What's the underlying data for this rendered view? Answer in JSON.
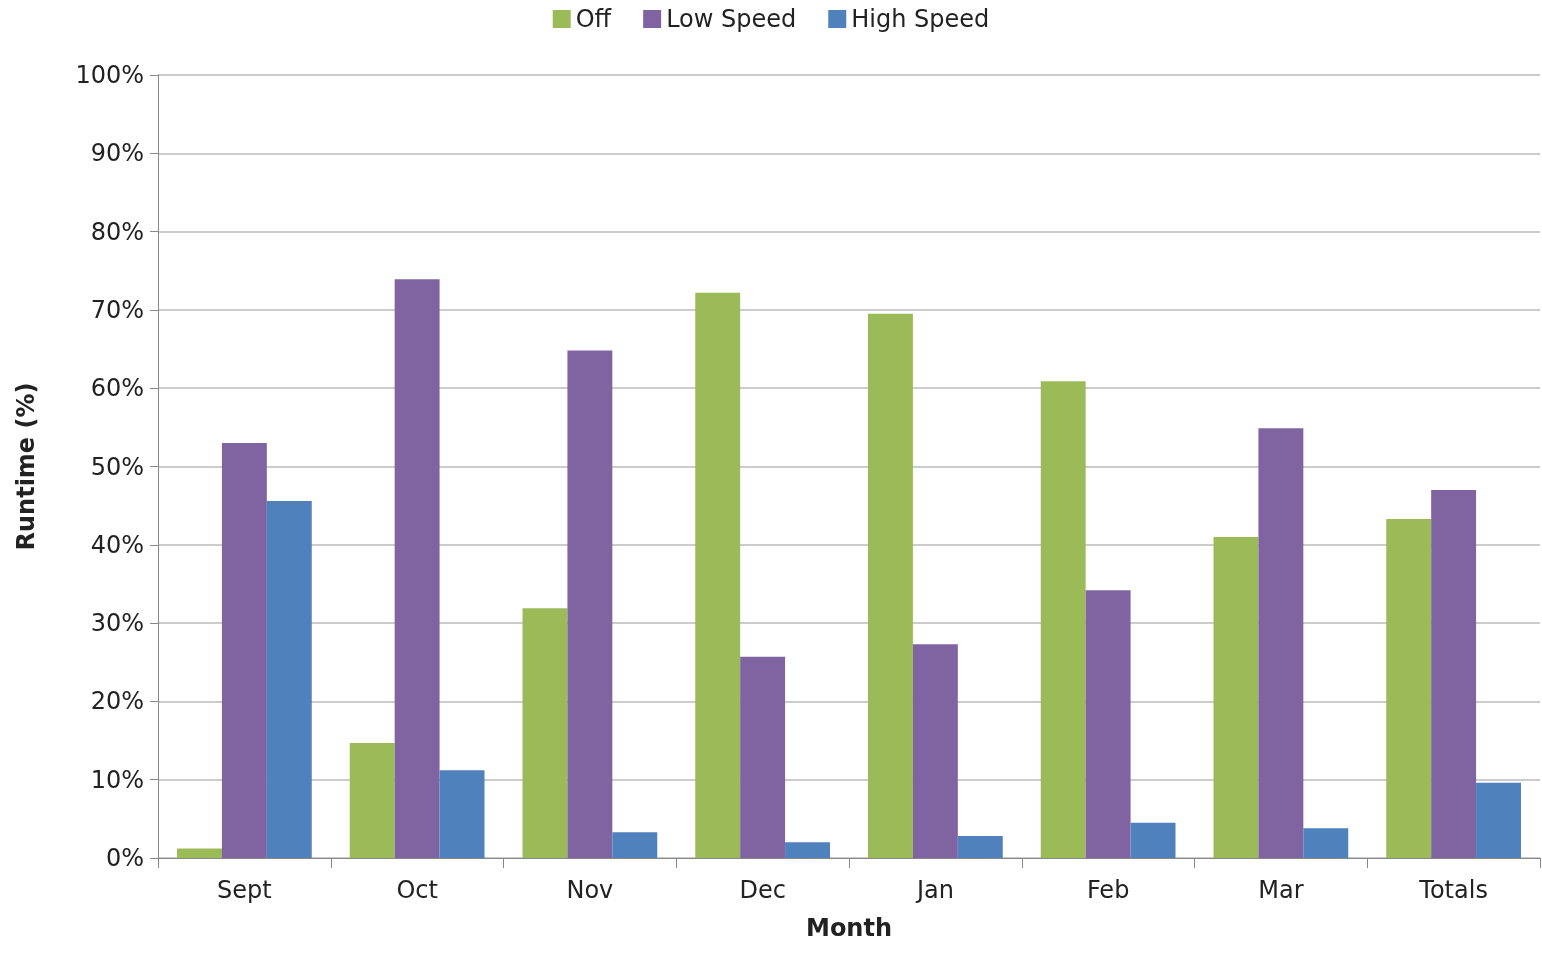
{
  "chart_data": {
    "type": "bar",
    "xlabel": "Month",
    "ylabel": "Runtime (%)",
    "categories": [
      "Sept",
      "Oct",
      "Nov",
      "Dec",
      "Jan",
      "Feb",
      "Mar",
      "Totals"
    ],
    "series": [
      {
        "name": "Off",
        "color": "#9bbb59",
        "values": [
          1.2,
          14.7,
          31.9,
          72.2,
          69.5,
          60.9,
          41.0,
          43.3
        ]
      },
      {
        "name": "Low Speed",
        "color": "#8064a2",
        "values": [
          53.0,
          73.9,
          64.8,
          25.7,
          27.3,
          34.2,
          54.9,
          47.0
        ]
      },
      {
        "name": "High Speed",
        "color": "#4f81bd",
        "values": [
          45.6,
          11.2,
          3.3,
          2.0,
          2.8,
          4.5,
          3.8,
          9.6
        ]
      }
    ],
    "ylim": [
      0,
      100
    ],
    "yticks": [
      {
        "value": 0,
        "label": "0%"
      },
      {
        "value": 10,
        "label": "10%"
      },
      {
        "value": 20,
        "label": "20%"
      },
      {
        "value": 30,
        "label": "30%"
      },
      {
        "value": 40,
        "label": "40%"
      },
      {
        "value": 50,
        "label": "50%"
      },
      {
        "value": 60,
        "label": "60%"
      },
      {
        "value": 70,
        "label": "70%"
      },
      {
        "value": 80,
        "label": "80%"
      },
      {
        "value": 90,
        "label": "90%"
      },
      {
        "value": 100,
        "label": "100%"
      }
    ],
    "grid": "y",
    "legend": "top"
  }
}
